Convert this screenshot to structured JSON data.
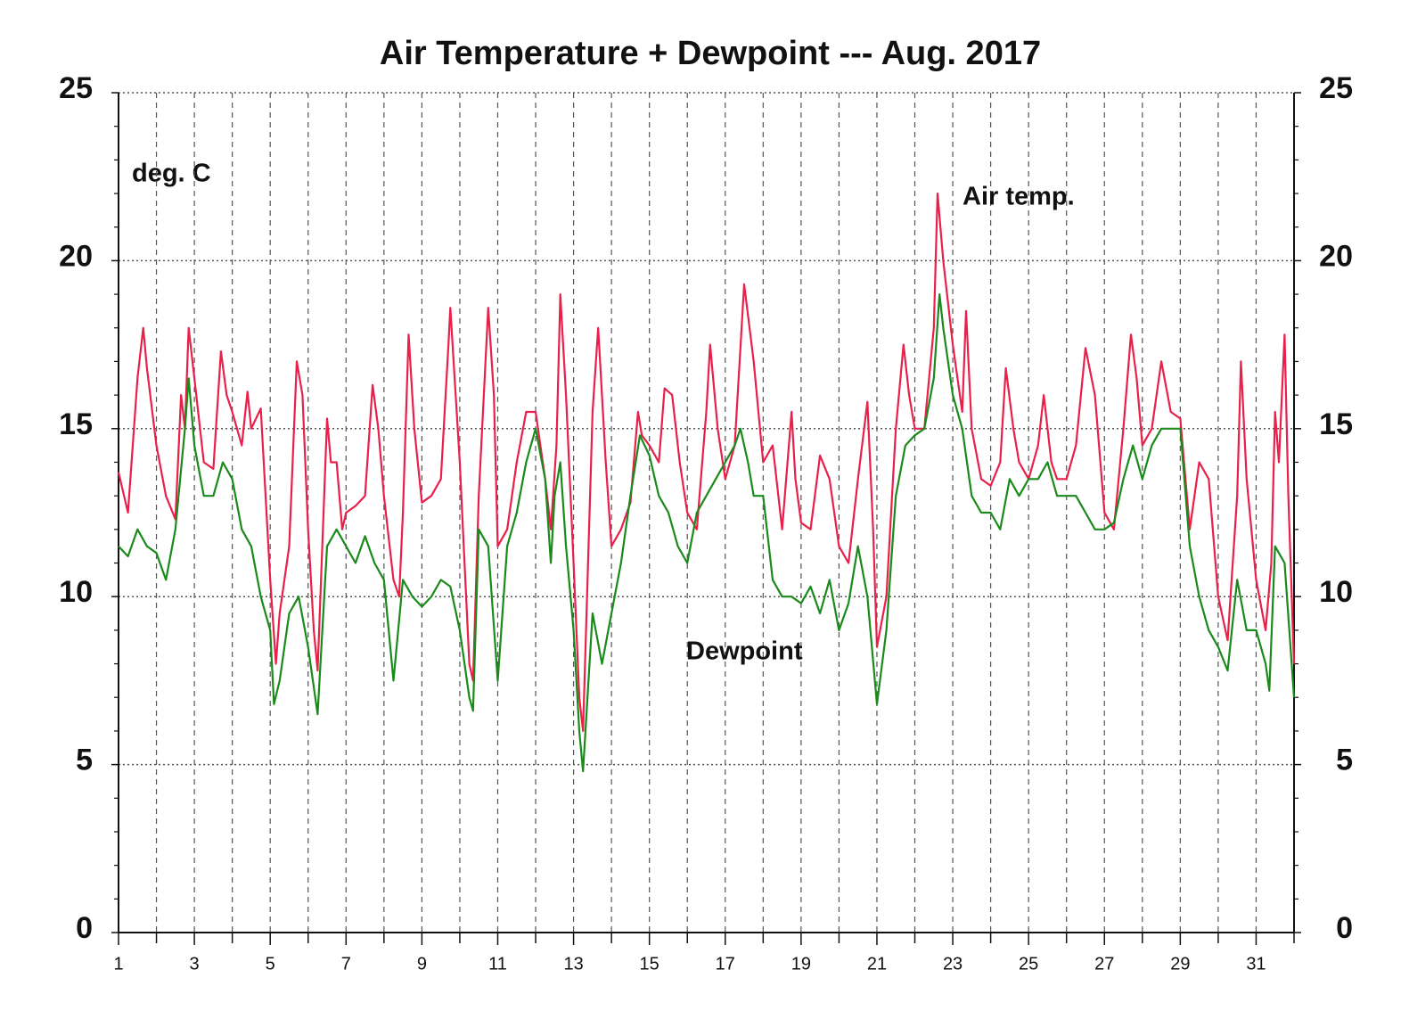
{
  "chart_data": {
    "type": "line",
    "title": "Air Temperature + Dewpoint --- Aug. 2017",
    "annotations": [
      "deg. C"
    ],
    "xlim": [
      1,
      32
    ],
    "xticks": [
      1,
      3,
      5,
      7,
      9,
      11,
      13,
      15,
      17,
      19,
      21,
      23,
      25,
      27,
      29,
      31
    ],
    "xminor_ticks": [
      2,
      4,
      6,
      8,
      10,
      12,
      14,
      16,
      18,
      20,
      22,
      24,
      26,
      28,
      30,
      32
    ],
    "ylim": [
      0,
      25
    ],
    "yticks": [
      0,
      5,
      10,
      15,
      20,
      25
    ],
    "yminor_ticks": [
      1,
      2,
      3,
      4,
      6,
      7,
      8,
      9,
      11,
      12,
      13,
      14,
      16,
      17,
      18,
      19,
      21,
      22,
      23,
      24
    ],
    "y2lim": [
      0,
      25
    ],
    "y2ticks": [
      0,
      5,
      10,
      15,
      20,
      25
    ],
    "grid": true,
    "series": [
      {
        "name": "Air temp.",
        "color": "#e8204a",
        "x": [
          1,
          1.25,
          1.5,
          1.65,
          1.75,
          2,
          2.25,
          2.5,
          2.65,
          2.75,
          2.85,
          3,
          3.25,
          3.5,
          3.7,
          3.85,
          4,
          4.25,
          4.4,
          4.5,
          4.75,
          5,
          5.15,
          5.25,
          5.5,
          5.7,
          5.85,
          6,
          6.15,
          6.25,
          6.5,
          6.6,
          6.75,
          6.9,
          7,
          7.25,
          7.5,
          7.7,
          7.85,
          8,
          8.25,
          8.4,
          8.5,
          8.65,
          8.8,
          9,
          9.25,
          9.5,
          9.7,
          9.75,
          10,
          10.25,
          10.35,
          10.5,
          10.75,
          10.9,
          11,
          11.25,
          11.5,
          11.75,
          12,
          12.25,
          12.4,
          12.55,
          12.65,
          12.8,
          13,
          13.15,
          13.25,
          13.5,
          13.65,
          13.85,
          14,
          14.25,
          14.5,
          14.7,
          14.8,
          15,
          15.25,
          15.4,
          15.6,
          15.8,
          16,
          16.25,
          16.5,
          16.6,
          16.8,
          17,
          17.25,
          17.5,
          17.75,
          18,
          18.25,
          18.5,
          18.75,
          18.85,
          19,
          19.25,
          19.5,
          19.75,
          20,
          20.25,
          20.5,
          20.75,
          20.9,
          21,
          21.25,
          21.5,
          21.7,
          21.85,
          22,
          22.25,
          22.5,
          22.6,
          22.75,
          23,
          23.25,
          23.35,
          23.5,
          23.75,
          24,
          24.25,
          24.4,
          24.6,
          24.75,
          25,
          25.25,
          25.4,
          25.6,
          25.75,
          26,
          26.25,
          26.5,
          26.75,
          27,
          27.25,
          27.5,
          27.7,
          27.85,
          28,
          28.25,
          28.5,
          28.75,
          29,
          29.25,
          29.5,
          29.75,
          30,
          30.25,
          30.5,
          30.6,
          30.75,
          31,
          31.25,
          31.4,
          31.5,
          31.6,
          31.75,
          31.85,
          32
        ],
        "values": [
          13.7,
          12.5,
          16.5,
          18.0,
          16.8,
          14.5,
          13.0,
          12.3,
          16.0,
          15.0,
          18.0,
          16.5,
          14.0,
          13.8,
          17.3,
          16.0,
          15.5,
          14.5,
          16.1,
          15.0,
          15.6,
          10.5,
          8.0,
          9.5,
          11.5,
          17.0,
          16.0,
          12.0,
          9.0,
          7.8,
          15.3,
          14.0,
          14.0,
          12.0,
          12.5,
          12.7,
          13.0,
          16.3,
          15.0,
          13.0,
          10.5,
          10.0,
          12.5,
          17.8,
          15.0,
          12.8,
          13.0,
          13.5,
          17.5,
          18.6,
          14.0,
          8.0,
          7.5,
          13.0,
          18.6,
          16.0,
          11.5,
          12.0,
          14.0,
          15.5,
          15.5,
          13.5,
          12.0,
          14.5,
          19.0,
          16.0,
          11.0,
          7.0,
          6.0,
          15.5,
          18.0,
          14.0,
          11.5,
          12.0,
          12.8,
          15.5,
          14.8,
          14.5,
          14.0,
          16.2,
          16.0,
          14.0,
          12.5,
          12.0,
          15.5,
          17.5,
          15.0,
          13.5,
          14.5,
          19.3,
          17.0,
          14.0,
          14.5,
          12.0,
          15.5,
          13.5,
          12.2,
          12.0,
          14.2,
          13.5,
          11.5,
          11.0,
          13.5,
          15.8,
          12.0,
          8.5,
          10.0,
          15.0,
          17.5,
          16.0,
          15.0,
          15.0,
          18.0,
          22.0,
          20.0,
          17.5,
          15.5,
          18.5,
          15.0,
          13.5,
          13.3,
          14.0,
          16.8,
          15.0,
          14.0,
          13.5,
          14.5,
          16.0,
          14.0,
          13.5,
          13.5,
          14.5,
          17.4,
          16.0,
          12.5,
          12.0,
          15.0,
          17.8,
          16.5,
          14.5,
          15.0,
          17.0,
          15.5,
          15.3,
          12.0,
          14.0,
          13.5,
          10.0,
          8.7,
          13.0,
          17.0,
          13.5,
          10.5,
          9.0,
          11.0,
          15.5,
          14.0,
          17.8,
          13.0,
          8.0
        ]
      },
      {
        "name": "Dewpoint",
        "color": "#1a8a1a",
        "x": [
          1,
          1.25,
          1.5,
          1.75,
          2,
          2.25,
          2.5,
          2.75,
          2.85,
          3,
          3.25,
          3.5,
          3.75,
          4,
          4.25,
          4.5,
          4.75,
          5,
          5.1,
          5.25,
          5.5,
          5.75,
          6,
          6.25,
          6.5,
          6.75,
          7,
          7.25,
          7.5,
          7.75,
          8,
          8.25,
          8.5,
          8.75,
          9,
          9.25,
          9.5,
          9.75,
          10,
          10.25,
          10.35,
          10.5,
          10.75,
          11,
          11.25,
          11.5,
          11.75,
          12,
          12.25,
          12.4,
          12.5,
          12.65,
          12.8,
          13,
          13.15,
          13.25,
          13.5,
          13.75,
          14,
          14.25,
          14.5,
          14.75,
          15,
          15.25,
          15.5,
          15.75,
          16,
          16.25,
          16.5,
          16.75,
          17,
          17.25,
          17.4,
          17.6,
          17.75,
          18,
          18.25,
          18.5,
          18.75,
          19,
          19.25,
          19.5,
          19.75,
          20,
          20.25,
          20.5,
          20.75,
          21,
          21.25,
          21.5,
          21.75,
          22,
          22.25,
          22.5,
          22.65,
          22.75,
          23,
          23.25,
          23.5,
          23.75,
          24,
          24.25,
          24.5,
          24.75,
          25,
          25.25,
          25.5,
          25.75,
          26,
          26.25,
          26.5,
          26.75,
          27,
          27.25,
          27.5,
          27.75,
          28,
          28.25,
          28.5,
          28.75,
          29,
          29.25,
          29.5,
          29.75,
          30,
          30.25,
          30.5,
          30.75,
          31,
          31.25,
          31.35,
          31.5,
          31.75,
          32
        ],
        "values": [
          11.5,
          11.2,
          12.0,
          11.5,
          11.3,
          10.5,
          12.0,
          15.0,
          16.5,
          14.5,
          13.0,
          13.0,
          14.0,
          13.5,
          12.0,
          11.5,
          10.0,
          9.0,
          6.8,
          7.5,
          9.5,
          10.0,
          8.5,
          6.5,
          11.5,
          12.0,
          11.5,
          11.0,
          11.8,
          11.0,
          10.5,
          7.5,
          10.5,
          10.0,
          9.7,
          10.0,
          10.5,
          10.3,
          9.0,
          7.0,
          6.6,
          12.0,
          11.5,
          7.5,
          11.5,
          12.5,
          14.0,
          15.0,
          13.5,
          11.0,
          13.0,
          14.0,
          11.5,
          9.0,
          6.0,
          4.8,
          9.5,
          8.0,
          9.5,
          11.0,
          13.0,
          14.8,
          14.2,
          13.0,
          12.5,
          11.5,
          11.0,
          12.5,
          13.0,
          13.5,
          14.0,
          14.5,
          15.0,
          14.0,
          13.0,
          13.0,
          10.5,
          10.0,
          10.0,
          9.8,
          10.3,
          9.5,
          10.5,
          9.0,
          9.8,
          11.5,
          10.0,
          6.8,
          9.0,
          13.0,
          14.5,
          14.8,
          15.0,
          16.5,
          19.0,
          18.0,
          16.0,
          15.0,
          13.0,
          12.5,
          12.5,
          12.0,
          13.5,
          13.0,
          13.5,
          13.5,
          14.0,
          13.0,
          13.0,
          13.0,
          12.5,
          12.0,
          12.0,
          12.2,
          13.5,
          14.5,
          13.5,
          14.5,
          15.0,
          15.0,
          15.0,
          11.5,
          10.0,
          9.0,
          8.5,
          7.8,
          10.5,
          9.0,
          9.0,
          8.0,
          7.2,
          11.5,
          11.0,
          7.0
        ]
      }
    ]
  }
}
